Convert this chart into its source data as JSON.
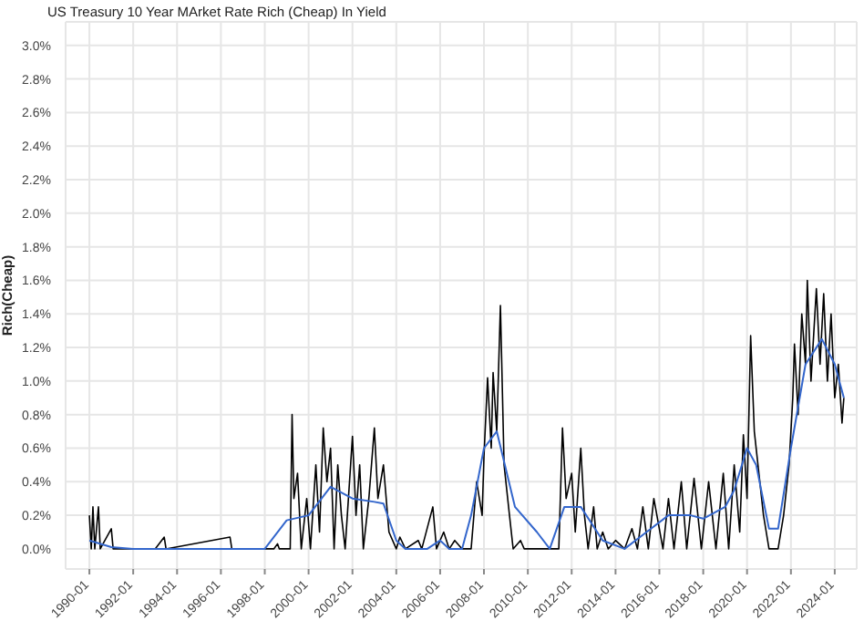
{
  "chart_data": {
    "type": "line",
    "title": "US Treasury 10 Year MArket Rate Rich (Cheap) In Yield",
    "ylabel": "Rich(Cheap)",
    "grid": true,
    "legend": false,
    "marker": "none",
    "line_style": "solid",
    "xlim": [
      "1988-12",
      "2025-01"
    ],
    "xticks": [
      "1990-01",
      "1992-01",
      "1994-01",
      "1996-01",
      "1998-01",
      "2000-01",
      "2002-01",
      "2004-01",
      "2006-01",
      "2008-01",
      "2010-01",
      "2012-01",
      "2014-01",
      "2016-01",
      "2018-01",
      "2020-01",
      "2022-01",
      "2024-01"
    ],
    "ylim": [
      -0.12,
      3.14
    ],
    "yticks": [
      {
        "value": 0,
        "label": "0.0%"
      },
      {
        "value": 0.2,
        "label": "0.2%"
      },
      {
        "value": 0.4,
        "label": "0.4%"
      },
      {
        "value": 0.6,
        "label": "0.6%"
      },
      {
        "value": 0.8,
        "label": "0.8%"
      },
      {
        "value": 1,
        "label": "1.0%"
      },
      {
        "value": 1.2,
        "label": "1.2%"
      },
      {
        "value": 1.4,
        "label": "1.4%"
      },
      {
        "value": 1.6,
        "label": "1.6%"
      },
      {
        "value": 1.8,
        "label": "1.8%"
      },
      {
        "value": 2,
        "label": "2.0%"
      },
      {
        "value": 2.2,
        "label": "2.2%"
      },
      {
        "value": 2.4,
        "label": "2.4%"
      },
      {
        "value": 2.6,
        "label": "2.6%"
      },
      {
        "value": 2.8,
        "label": "2.8%"
      },
      {
        "value": 3,
        "label": "3.0%"
      }
    ],
    "series": [
      {
        "color": "#000000",
        "x": [
          "1990-01",
          "1990-02",
          "1990-03",
          "1990-04",
          "1990-06",
          "1990-07",
          "1991-01",
          "1991-02",
          "1992-01",
          "1993-01",
          "1993-06",
          "1993-07",
          "1996-06",
          "1996-07",
          "1998-06",
          "1998-08",
          "1998-09",
          "1999-03",
          "1999-04",
          "1999-05",
          "1999-07",
          "1999-09",
          "1999-12",
          "2000-02",
          "2000-05",
          "2000-07",
          "2000-09",
          "2000-11",
          "2001-01",
          "2001-03",
          "2001-05",
          "2001-07",
          "2001-09",
          "2002-01",
          "2002-03",
          "2002-05",
          "2002-07",
          "2002-10",
          "2003-01",
          "2003-03",
          "2003-06",
          "2003-09",
          "2004-01",
          "2004-03",
          "2004-06",
          "2005-01",
          "2005-03",
          "2005-09",
          "2005-11",
          "2006-03",
          "2006-06",
          "2006-09",
          "2007-01",
          "2007-06",
          "2007-09",
          "2007-12",
          "2008-01",
          "2008-03",
          "2008-05",
          "2008-06",
          "2008-08",
          "2008-10",
          "2008-12",
          "2009-03",
          "2009-05",
          "2009-09",
          "2009-11",
          "2010-03",
          "2011-06",
          "2011-08",
          "2011-10",
          "2012-01",
          "2012-03",
          "2012-06",
          "2012-08",
          "2012-10",
          "2013-01",
          "2013-03",
          "2013-06",
          "2013-09",
          "2014-01",
          "2014-06",
          "2014-10",
          "2015-01",
          "2015-04",
          "2015-07",
          "2015-10",
          "2016-03",
          "2016-06",
          "2016-09",
          "2017-01",
          "2017-04",
          "2017-08",
          "2017-12",
          "2018-04",
          "2018-08",
          "2018-12",
          "2019-03",
          "2019-06",
          "2019-09",
          "2019-11",
          "2020-01",
          "2020-03",
          "2020-05",
          "2020-07",
          "2020-10",
          "2021-01",
          "2021-06",
          "2021-09",
          "2021-12",
          "2022-02",
          "2022-03",
          "2022-05",
          "2022-07",
          "2022-09",
          "2022-10",
          "2022-12",
          "2023-03",
          "2023-05",
          "2023-07",
          "2023-09",
          "2023-11",
          "2024-01",
          "2024-03",
          "2024-05",
          "2024-06"
        ],
        "values": [
          0.2,
          0,
          0.25,
          0,
          0.25,
          0,
          0.12,
          0,
          0,
          0,
          0.07,
          0,
          0.07,
          0,
          0,
          0.03,
          0,
          0,
          0.8,
          0.3,
          0.45,
          0,
          0.3,
          0,
          0.5,
          0.1,
          0.72,
          0.4,
          0.6,
          0,
          0.5,
          0.2,
          0,
          0.67,
          0.2,
          0.5,
          0,
          0.3,
          0.72,
          0.3,
          0.5,
          0.1,
          0,
          0.07,
          0,
          0.05,
          0,
          0.25,
          0,
          0.1,
          0,
          0.05,
          0,
          0,
          0.4,
          0.2,
          0.55,
          1.02,
          0.6,
          1.05,
          0.7,
          1.45,
          0.5,
          0.2,
          0,
          0.05,
          0,
          0,
          0,
          0.72,
          0.3,
          0.45,
          0.1,
          0.6,
          0.2,
          0,
          0.25,
          0,
          0.1,
          0,
          0.05,
          0,
          0.12,
          0,
          0.25,
          0,
          0.3,
          0,
          0.3,
          0,
          0.4,
          0,
          0.42,
          0,
          0.4,
          0,
          0.45,
          0,
          0.5,
          0.1,
          0.68,
          0.3,
          1.27,
          0.7,
          0.5,
          0.2,
          0,
          0,
          0.2,
          0.5,
          0.9,
          1.22,
          0.8,
          1.4,
          1.1,
          1.6,
          1,
          1.55,
          1.1,
          1.52,
          1,
          1.4,
          0.9,
          1.1,
          0.75,
          0.9
        ]
      },
      {
        "color": "#3366cc",
        "x": [
          "1990-01",
          "1991-01",
          "1992-01",
          "1998-01",
          "1999-01",
          "2000-01",
          "2001-01",
          "2002-01",
          "2003-01",
          "2003-06",
          "2004-01",
          "2004-06",
          "2005-06",
          "2006-01",
          "2006-06",
          "2007-01",
          "2007-06",
          "2008-01",
          "2008-08",
          "2009-06",
          "2010-06",
          "2011-01",
          "2011-09",
          "2012-06",
          "2013-06",
          "2014-06",
          "2015-06",
          "2016-06",
          "2017-06",
          "2018-01",
          "2019-01",
          "2019-06",
          "2020-01",
          "2020-06",
          "2021-01",
          "2021-06",
          "2022-01",
          "2022-09",
          "2023-06",
          "2024-01",
          "2024-06"
        ],
        "values": [
          0.05,
          0.01,
          0,
          0,
          0.17,
          0.2,
          0.37,
          0.3,
          0.28,
          0.27,
          0.05,
          0,
          0,
          0.05,
          0,
          0,
          0.2,
          0.6,
          0.7,
          0.25,
          0.1,
          0,
          0.25,
          0.25,
          0.05,
          0,
          0.1,
          0.2,
          0.2,
          0.18,
          0.25,
          0.35,
          0.6,
          0.5,
          0.12,
          0.12,
          0.6,
          1.1,
          1.25,
          1.1,
          0.9
        ]
      }
    ]
  }
}
